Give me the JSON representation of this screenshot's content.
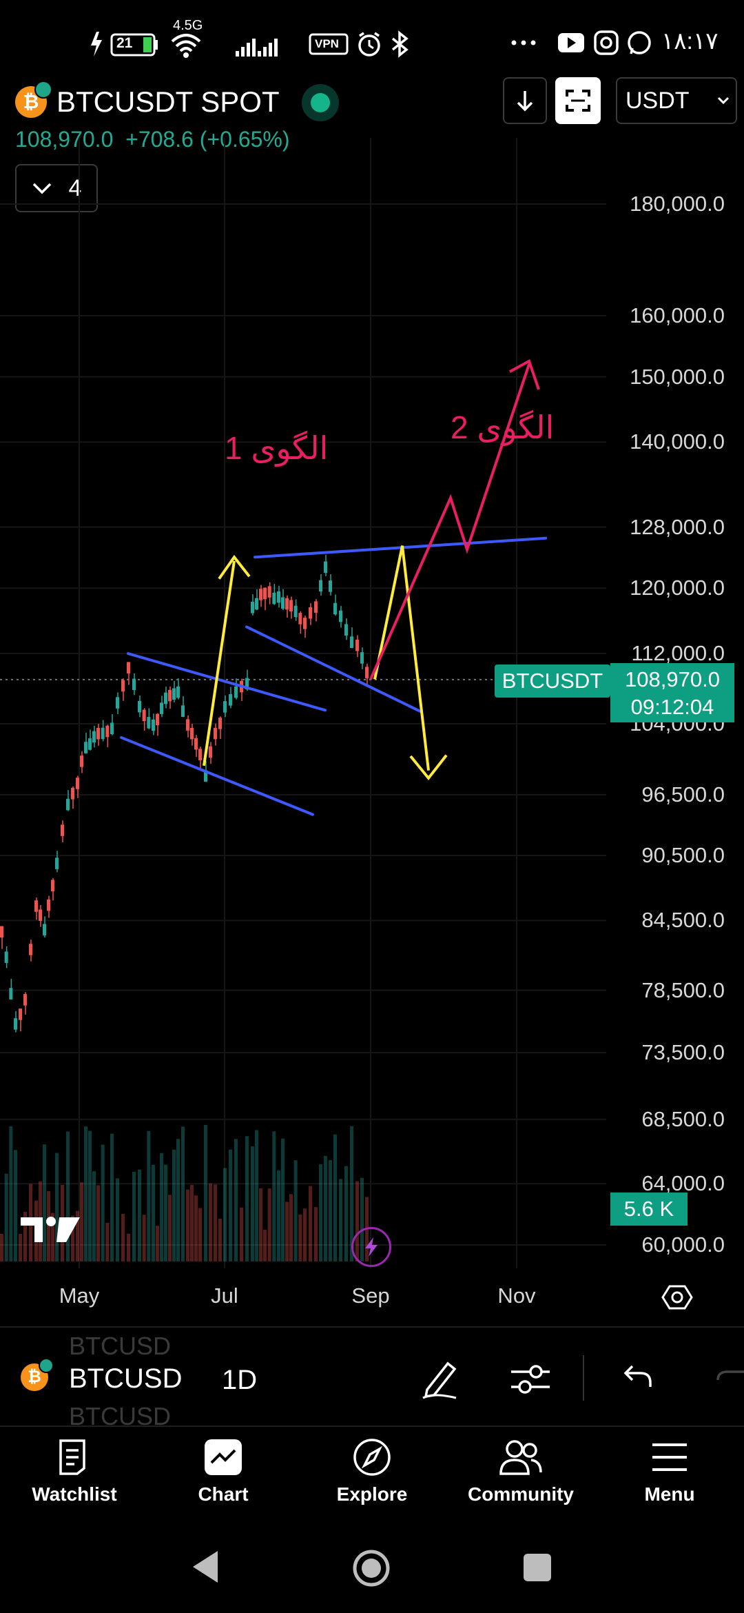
{
  "status_bar": {
    "battery": "21",
    "network": "4.5G",
    "vpn": "VPN",
    "time": "۱۸:۱۷",
    "icons": [
      "flash-icon",
      "wifi-icon",
      "signal-icon",
      "vpn-icon",
      "alarm-icon",
      "bluetooth-icon",
      "more-icon",
      "youtube-icon",
      "instagram-icon",
      "whatsapp-icon"
    ]
  },
  "header": {
    "symbol": "BTCUSDT SPOT",
    "price": "108,970.0",
    "change": "+708.6 (+0.65%)",
    "indicator_count": "4",
    "currency": "USDT",
    "colors": {
      "up": "#22ab94",
      "accent": "#0e9e82"
    }
  },
  "chart": {
    "price_ticks": [
      {
        "label": "180,000.0",
        "v": 180000
      },
      {
        "label": "160,000.0",
        "v": 160000
      },
      {
        "label": "150,000.0",
        "v": 150000
      },
      {
        "label": "140,000.0",
        "v": 140000
      },
      {
        "label": "128,000.0",
        "v": 128000
      },
      {
        "label": "120,000.0",
        "v": 120000
      },
      {
        "label": "112,000.0",
        "v": 112000
      },
      {
        "label": "104,000.0",
        "v": 104000
      },
      {
        "label": "96,500.0",
        "v": 96500
      },
      {
        "label": "90,500.0",
        "v": 90500
      },
      {
        "label": "84,500.0",
        "v": 84500
      },
      {
        "label": "78,500.0",
        "v": 78500
      },
      {
        "label": "73,500.0",
        "v": 73500
      },
      {
        "label": "68,500.0",
        "v": 68500
      },
      {
        "label": "64,000.0",
        "v": 64000
      },
      {
        "label": "60,000.0",
        "v": 60000
      }
    ],
    "time_ticks": [
      "May",
      "Jul",
      "Sep",
      "Nov"
    ],
    "last_label_symbol": "BTCUSDT",
    "last_price": "108,970.0",
    "countdown": "09:12:04",
    "volume_label": "5.6 K",
    "pattern_1_label": "الگوی 1",
    "pattern_2_label": "الگوی 2",
    "colors": {
      "channel": "#3d5afe",
      "yellow": "#ffeb3b",
      "pink": "#e91e63",
      "up": "#26a69a",
      "down": "#ef5350"
    }
  },
  "toolbar": {
    "symbol": "BTCUSD",
    "symbol_ghost": "BTCUSD",
    "interval": "1D"
  },
  "bottom_nav": [
    {
      "label": "Watchlist",
      "icon": "watchlist-icon"
    },
    {
      "label": "Chart",
      "icon": "chart-icon"
    },
    {
      "label": "Explore",
      "icon": "compass-icon"
    },
    {
      "label": "Community",
      "icon": "community-icon"
    },
    {
      "label": "Menu",
      "icon": "menu-icon"
    }
  ]
}
